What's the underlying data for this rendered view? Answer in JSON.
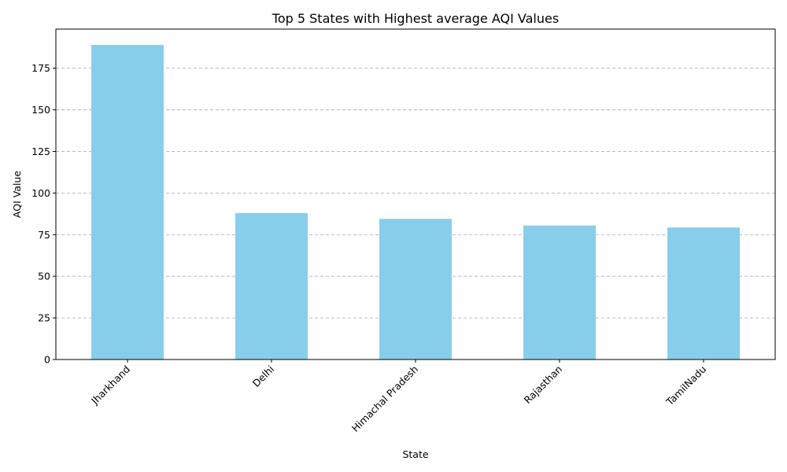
{
  "chart_data": {
    "type": "bar",
    "title": "Top 5 States with Highest average AQI Values",
    "xlabel": "State",
    "ylabel": "AQI Value",
    "categories": [
      "Jharkhand",
      "Delhi",
      "Himachal Pradesh",
      "Rajasthan",
      "TamilNadu"
    ],
    "values": [
      189,
      88,
      84.5,
      80.5,
      79.3
    ],
    "ylim": [
      0,
      198.5
    ],
    "yticks": [
      0,
      25,
      50,
      75,
      100,
      125,
      150,
      175
    ],
    "grid": "y-dashed",
    "tick_label_rotation": 45,
    "bar_color": "#87CEEB",
    "legend": "none"
  }
}
